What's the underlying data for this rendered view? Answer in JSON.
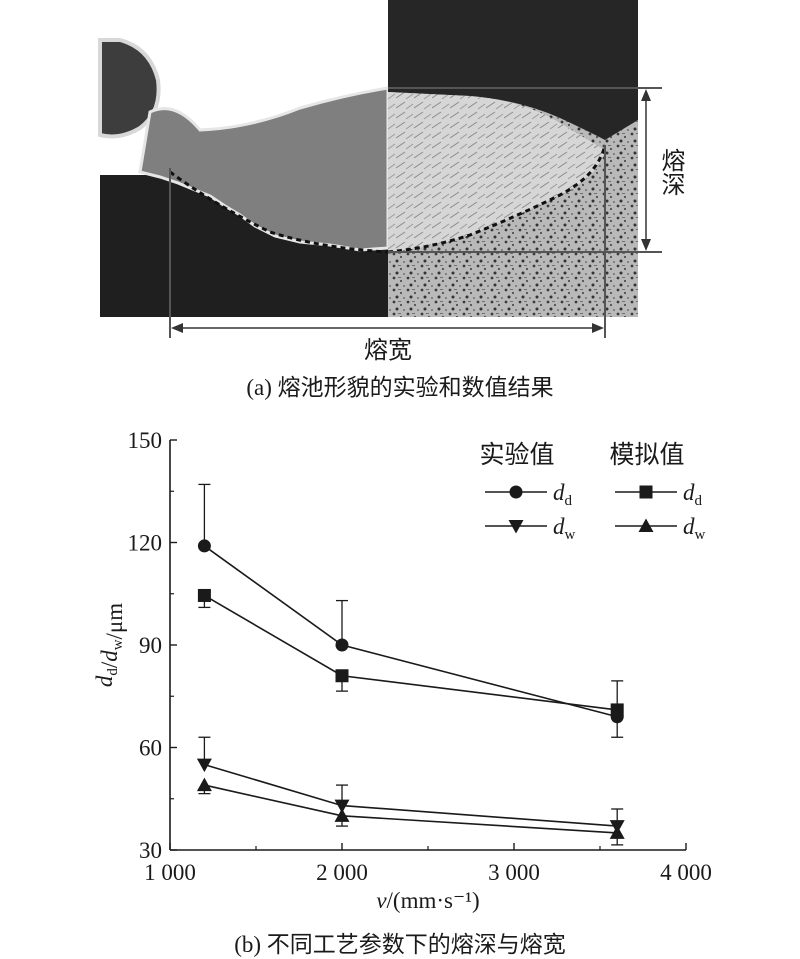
{
  "figure_a": {
    "caption": "(a) 熔池形貌的实验和数值结果",
    "depth_label": "熔深",
    "width_label": "熔宽"
  },
  "figure_b": {
    "caption": "(b) 不同工艺参数下的熔深与熔宽"
  },
  "chart_data": {
    "type": "line",
    "xlabel": "v/(mm·s⁻¹)",
    "ylabel": "dd/dw/μm",
    "xlim": [
      1000,
      4000
    ],
    "ylim": [
      30,
      150
    ],
    "xticks": [
      1000,
      2000,
      3000,
      4000
    ],
    "xtick_labels": [
      "1 000",
      "2 000",
      "3 000",
      "4 000"
    ],
    "yticks": [
      30,
      60,
      90,
      120,
      150
    ],
    "ytick_labels": [
      "30",
      "60",
      "90",
      "120",
      "150"
    ],
    "legend_position": "top-right",
    "legend_groups": [
      "实验值",
      "模拟值"
    ],
    "x": [
      1200,
      2000,
      3600
    ],
    "series": [
      {
        "group": "实验值",
        "name": "dd",
        "sym": "d",
        "sub": "d",
        "marker": "circle",
        "values": [
          119,
          90,
          69
        ],
        "err": [
          18,
          13,
          10.5
        ]
      },
      {
        "group": "模拟值",
        "name": "dd",
        "sym": "d",
        "sub": "d",
        "marker": "square",
        "values": [
          104.5,
          81,
          71
        ],
        "err": [
          3.5,
          4.5,
          8
        ]
      },
      {
        "group": "实验值",
        "name": "dw",
        "sym": "d",
        "sub": "w",
        "marker": "tri-down",
        "values": [
          55,
          43,
          37
        ],
        "err": [
          8,
          6,
          5
        ]
      },
      {
        "group": "模拟值",
        "name": "dw",
        "sym": "d",
        "sub": "w",
        "marker": "tri-up",
        "values": [
          49,
          40,
          35
        ],
        "err": [
          2.5,
          3,
          3.5
        ]
      }
    ]
  }
}
